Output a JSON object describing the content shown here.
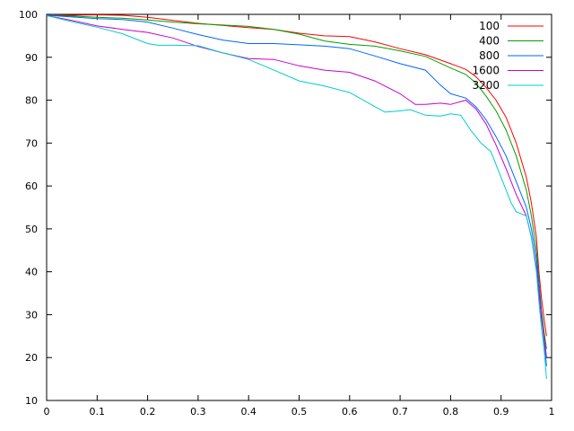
{
  "chart_data": {
    "type": "line",
    "xlim": [
      0,
      1
    ],
    "ylim": [
      10,
      100
    ],
    "xticks": [
      "0",
      "0.1",
      "0.2",
      "0.3",
      "0.4",
      "0.5",
      "0.6",
      "0.7",
      "0.8",
      "0.9",
      "1"
    ],
    "yticks": [
      "10",
      "20",
      "30",
      "40",
      "50",
      "60",
      "70",
      "80",
      "90",
      "100"
    ],
    "grid": false,
    "legend_position": "top-right",
    "series": [
      {
        "name": "100",
        "color": "#ff0000",
        "points": [
          [
            0,
            99.7
          ],
          [
            0.05,
            99.8
          ],
          [
            0.1,
            99.9
          ],
          [
            0.15,
            99.8
          ],
          [
            0.2,
            99.3
          ],
          [
            0.25,
            98.6
          ],
          [
            0.3,
            97.9
          ],
          [
            0.35,
            97.4
          ],
          [
            0.4,
            96.9
          ],
          [
            0.45,
            96.5
          ],
          [
            0.5,
            95.6
          ],
          [
            0.55,
            95
          ],
          [
            0.6,
            94.8
          ],
          [
            0.65,
            93.6
          ],
          [
            0.7,
            92
          ],
          [
            0.75,
            90.6
          ],
          [
            0.8,
            88.5
          ],
          [
            0.83,
            87.2
          ],
          [
            0.85,
            85.5
          ],
          [
            0.87,
            83
          ],
          [
            0.89,
            80
          ],
          [
            0.91,
            76
          ],
          [
            0.93,
            70
          ],
          [
            0.95,
            62
          ],
          [
            0.96,
            56
          ],
          [
            0.97,
            48
          ],
          [
            0.975,
            40
          ],
          [
            0.98,
            34
          ],
          [
            0.985,
            29
          ],
          [
            0.99,
            25
          ]
        ]
      },
      {
        "name": "400",
        "color": "#00a000",
        "points": [
          [
            0,
            99.7
          ],
          [
            0.05,
            99.6
          ],
          [
            0.1,
            99.3
          ],
          [
            0.15,
            99.1
          ],
          [
            0.2,
            98.7
          ],
          [
            0.25,
            98.2
          ],
          [
            0.3,
            97.8
          ],
          [
            0.35,
            97.5
          ],
          [
            0.4,
            97.2
          ],
          [
            0.45,
            96.5
          ],
          [
            0.5,
            95.4
          ],
          [
            0.55,
            93.8
          ],
          [
            0.6,
            93
          ],
          [
            0.65,
            92.6
          ],
          [
            0.7,
            91.5
          ],
          [
            0.75,
            90.2
          ],
          [
            0.8,
            87.5
          ],
          [
            0.83,
            86
          ],
          [
            0.85,
            84
          ],
          [
            0.87,
            81
          ],
          [
            0.89,
            77.5
          ],
          [
            0.91,
            73
          ],
          [
            0.93,
            67
          ],
          [
            0.95,
            59
          ],
          [
            0.96,
            53
          ],
          [
            0.97,
            45
          ],
          [
            0.975,
            38
          ],
          [
            0.98,
            31
          ],
          [
            0.985,
            26
          ],
          [
            0.99,
            22
          ]
        ]
      },
      {
        "name": "800",
        "color": "#0066ff",
        "points": [
          [
            0,
            99.8
          ],
          [
            0.05,
            99.4
          ],
          [
            0.1,
            99
          ],
          [
            0.15,
            98.8
          ],
          [
            0.2,
            98.2
          ],
          [
            0.25,
            96.8
          ],
          [
            0.3,
            95.3
          ],
          [
            0.35,
            94
          ],
          [
            0.4,
            93.2
          ],
          [
            0.45,
            93.2
          ],
          [
            0.5,
            92.9
          ],
          [
            0.55,
            92.6
          ],
          [
            0.6,
            92
          ],
          [
            0.65,
            90.3
          ],
          [
            0.7,
            88.5
          ],
          [
            0.75,
            87
          ],
          [
            0.78,
            83.5
          ],
          [
            0.8,
            81.5
          ],
          [
            0.83,
            80.5
          ],
          [
            0.85,
            78.5
          ],
          [
            0.87,
            75.5
          ],
          [
            0.89,
            71.5
          ],
          [
            0.91,
            67
          ],
          [
            0.93,
            61
          ],
          [
            0.95,
            55
          ],
          [
            0.96,
            50
          ],
          [
            0.97,
            43
          ],
          [
            0.975,
            37
          ],
          [
            0.98,
            30
          ],
          [
            0.985,
            24
          ],
          [
            0.99,
            18
          ]
        ]
      },
      {
        "name": "1600",
        "color": "#cc00cc",
        "points": [
          [
            0,
            99.7
          ],
          [
            0.05,
            98.6
          ],
          [
            0.1,
            97.3
          ],
          [
            0.15,
            96.5
          ],
          [
            0.2,
            95.8
          ],
          [
            0.25,
            94.5
          ],
          [
            0.3,
            92.5
          ],
          [
            0.35,
            91
          ],
          [
            0.4,
            89.7
          ],
          [
            0.45,
            89.5
          ],
          [
            0.5,
            88
          ],
          [
            0.55,
            87
          ],
          [
            0.6,
            86.5
          ],
          [
            0.65,
            84.5
          ],
          [
            0.7,
            81.5
          ],
          [
            0.73,
            79
          ],
          [
            0.75,
            79
          ],
          [
            0.78,
            79.3
          ],
          [
            0.8,
            79
          ],
          [
            0.83,
            80
          ],
          [
            0.85,
            78
          ],
          [
            0.87,
            74.5
          ],
          [
            0.89,
            69.5
          ],
          [
            0.91,
            64
          ],
          [
            0.93,
            58
          ],
          [
            0.95,
            53
          ],
          [
            0.96,
            48
          ],
          [
            0.97,
            41
          ],
          [
            0.975,
            35
          ],
          [
            0.98,
            29
          ],
          [
            0.985,
            25
          ],
          [
            0.99,
            20
          ]
        ]
      },
      {
        "name": "3200",
        "color": "#00cccc",
        "points": [
          [
            0,
            99.7
          ],
          [
            0.05,
            98.3
          ],
          [
            0.1,
            97
          ],
          [
            0.15,
            95.5
          ],
          [
            0.2,
            93.2
          ],
          [
            0.22,
            92.8
          ],
          [
            0.25,
            92.8
          ],
          [
            0.3,
            92.7
          ],
          [
            0.35,
            91
          ],
          [
            0.4,
            89.5
          ],
          [
            0.45,
            87
          ],
          [
            0.5,
            84.5
          ],
          [
            0.55,
            83.3
          ],
          [
            0.6,
            81.8
          ],
          [
            0.65,
            78.5
          ],
          [
            0.67,
            77.2
          ],
          [
            0.7,
            77.5
          ],
          [
            0.72,
            77.8
          ],
          [
            0.75,
            76.5
          ],
          [
            0.78,
            76.3
          ],
          [
            0.8,
            76.8
          ],
          [
            0.82,
            76.5
          ],
          [
            0.84,
            73
          ],
          [
            0.86,
            70
          ],
          [
            0.88,
            68
          ],
          [
            0.9,
            62
          ],
          [
            0.92,
            56
          ],
          [
            0.93,
            54
          ],
          [
            0.95,
            53
          ],
          [
            0.96,
            48
          ],
          [
            0.97,
            40
          ],
          [
            0.975,
            33
          ],
          [
            0.98,
            27
          ],
          [
            0.985,
            22
          ],
          [
            0.99,
            15
          ]
        ]
      }
    ]
  }
}
